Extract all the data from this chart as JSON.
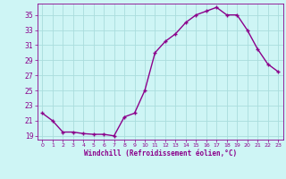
{
  "x": [
    0,
    1,
    2,
    3,
    4,
    5,
    6,
    7,
    8,
    9,
    10,
    11,
    12,
    13,
    14,
    15,
    16,
    17,
    18,
    19,
    20,
    21,
    22,
    23
  ],
  "y": [
    22,
    21,
    19.5,
    19.5,
    19.3,
    19.2,
    19.2,
    19.0,
    21.5,
    22.0,
    25.0,
    30.0,
    31.5,
    32.5,
    34.0,
    35.0,
    35.5,
    36.0,
    35.0,
    35.0,
    33.0,
    30.5,
    28.5,
    27.5
  ],
  "line_color": "#8B008B",
  "marker_color": "#8B008B",
  "bg_color": "#cef5f5",
  "grid_color": "#aadddd",
  "xlabel": "Windchill (Refroidissement éolien,°C)",
  "xlabel_color": "#8B008B",
  "tick_color": "#8B008B",
  "ylim": [
    18.5,
    36.5
  ],
  "yticks": [
    19,
    21,
    23,
    25,
    27,
    29,
    31,
    33,
    35
  ],
  "xlim": [
    -0.5,
    23.5
  ],
  "xticks": [
    0,
    1,
    2,
    3,
    4,
    5,
    6,
    7,
    8,
    9,
    10,
    11,
    12,
    13,
    14,
    15,
    16,
    17,
    18,
    19,
    20,
    21,
    22,
    23
  ],
  "line_width": 1.0,
  "marker_size": 2.5
}
